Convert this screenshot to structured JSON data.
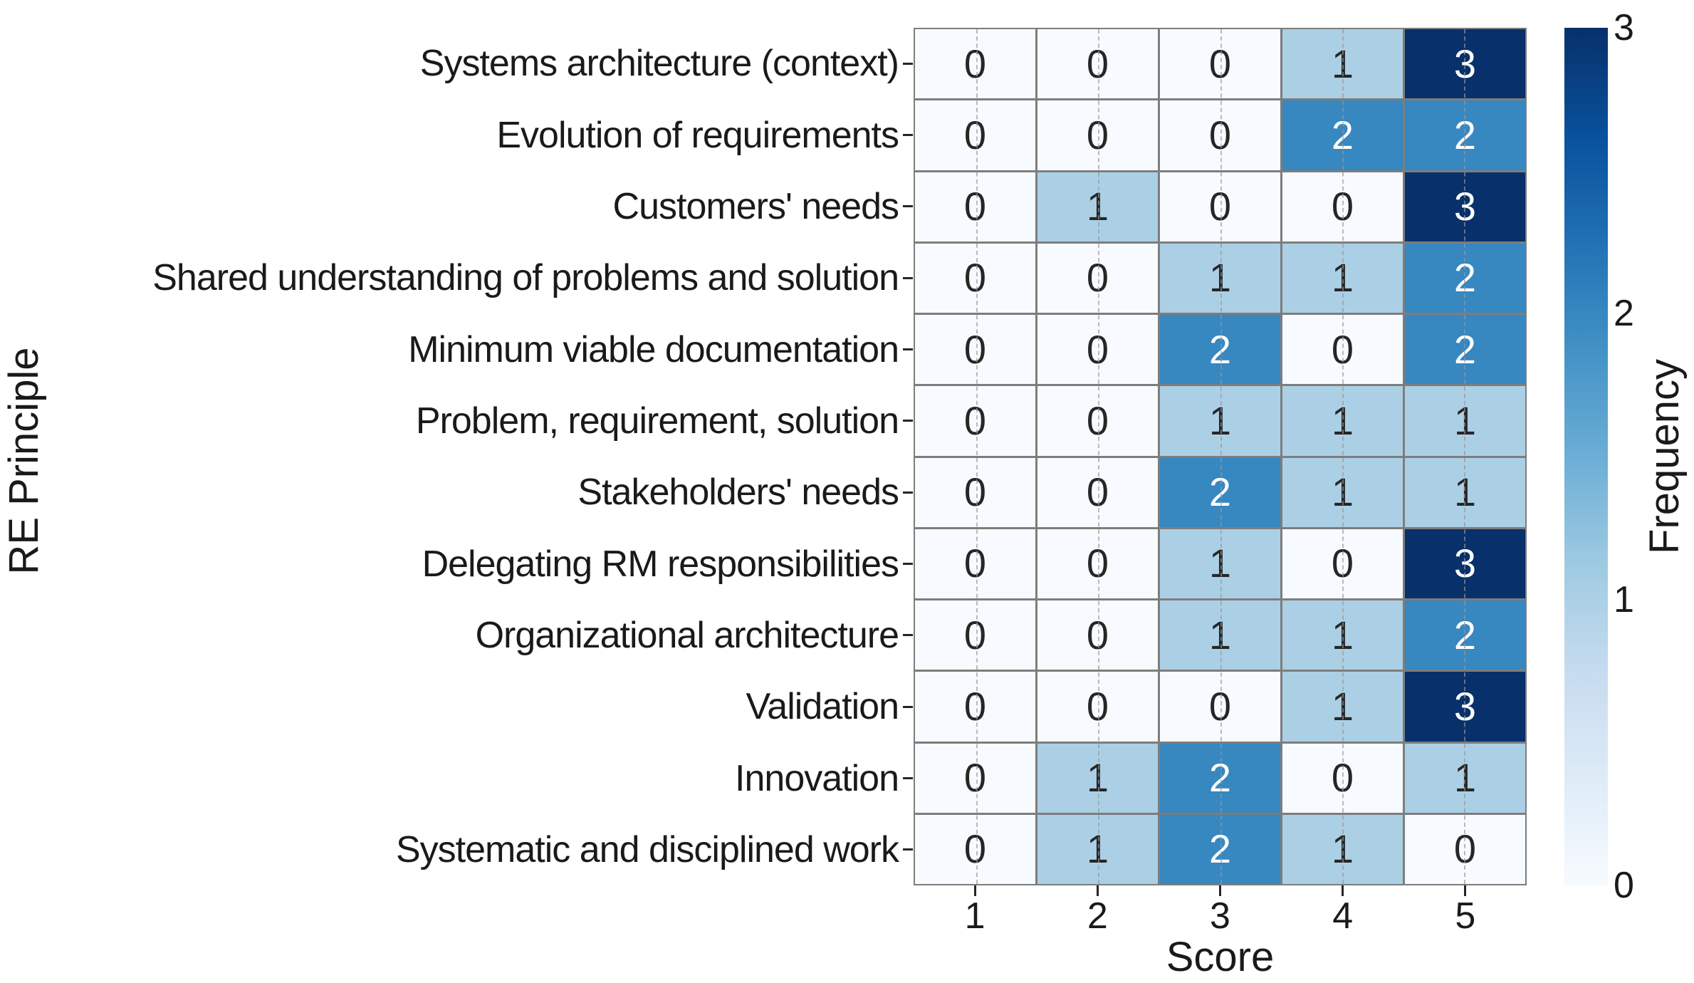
{
  "chart_data": {
    "type": "heatmap",
    "xlabel": "Score",
    "ylabel": "RE Principle",
    "colorbar_label": "Frequency",
    "x_categories": [
      "1",
      "2",
      "3",
      "4",
      "5"
    ],
    "y_categories": [
      "Systems architecture (context)",
      "Evolution of requirements",
      "Customers' needs",
      "Shared understanding of problems and solution",
      "Minimum viable documentation",
      "Problem, requirement, solution",
      "Stakeholders' needs",
      "Delegating RM responsibilities",
      "Organizational architecture",
      "Validation",
      "Innovation",
      "Systematic and disciplined work"
    ],
    "matrix": [
      [
        0,
        0,
        0,
        1,
        3
      ],
      [
        0,
        0,
        0,
        2,
        2
      ],
      [
        0,
        1,
        0,
        0,
        3
      ],
      [
        0,
        0,
        1,
        1,
        2
      ],
      [
        0,
        0,
        2,
        0,
        2
      ],
      [
        0,
        0,
        1,
        1,
        1
      ],
      [
        0,
        0,
        2,
        1,
        1
      ],
      [
        0,
        0,
        1,
        0,
        3
      ],
      [
        0,
        0,
        1,
        1,
        2
      ],
      [
        0,
        0,
        0,
        1,
        3
      ],
      [
        0,
        1,
        2,
        0,
        1
      ],
      [
        0,
        1,
        2,
        1,
        0
      ]
    ],
    "value_range": [
      0,
      3
    ],
    "colorbar_ticks": [
      0,
      1,
      2,
      3
    ],
    "grid": "vertical-dashed",
    "legend_position": "right-colorbar",
    "value_colors": {
      "0": "#f7fbff",
      "1": "#abd0e6",
      "2": "#3787c0",
      "3": "#08306b"
    },
    "annotation_text_dark": "#262626",
    "annotation_text_light": "#ffffff",
    "light_text_min_value": 2,
    "cell_border_color": "#7d7d7d",
    "colormap_stops": [
      "#f7fbff",
      "#deebf7",
      "#c6dbef",
      "#9ecae1",
      "#6baed6",
      "#4292c6",
      "#2171b5",
      "#08519c",
      "#08306b"
    ]
  }
}
